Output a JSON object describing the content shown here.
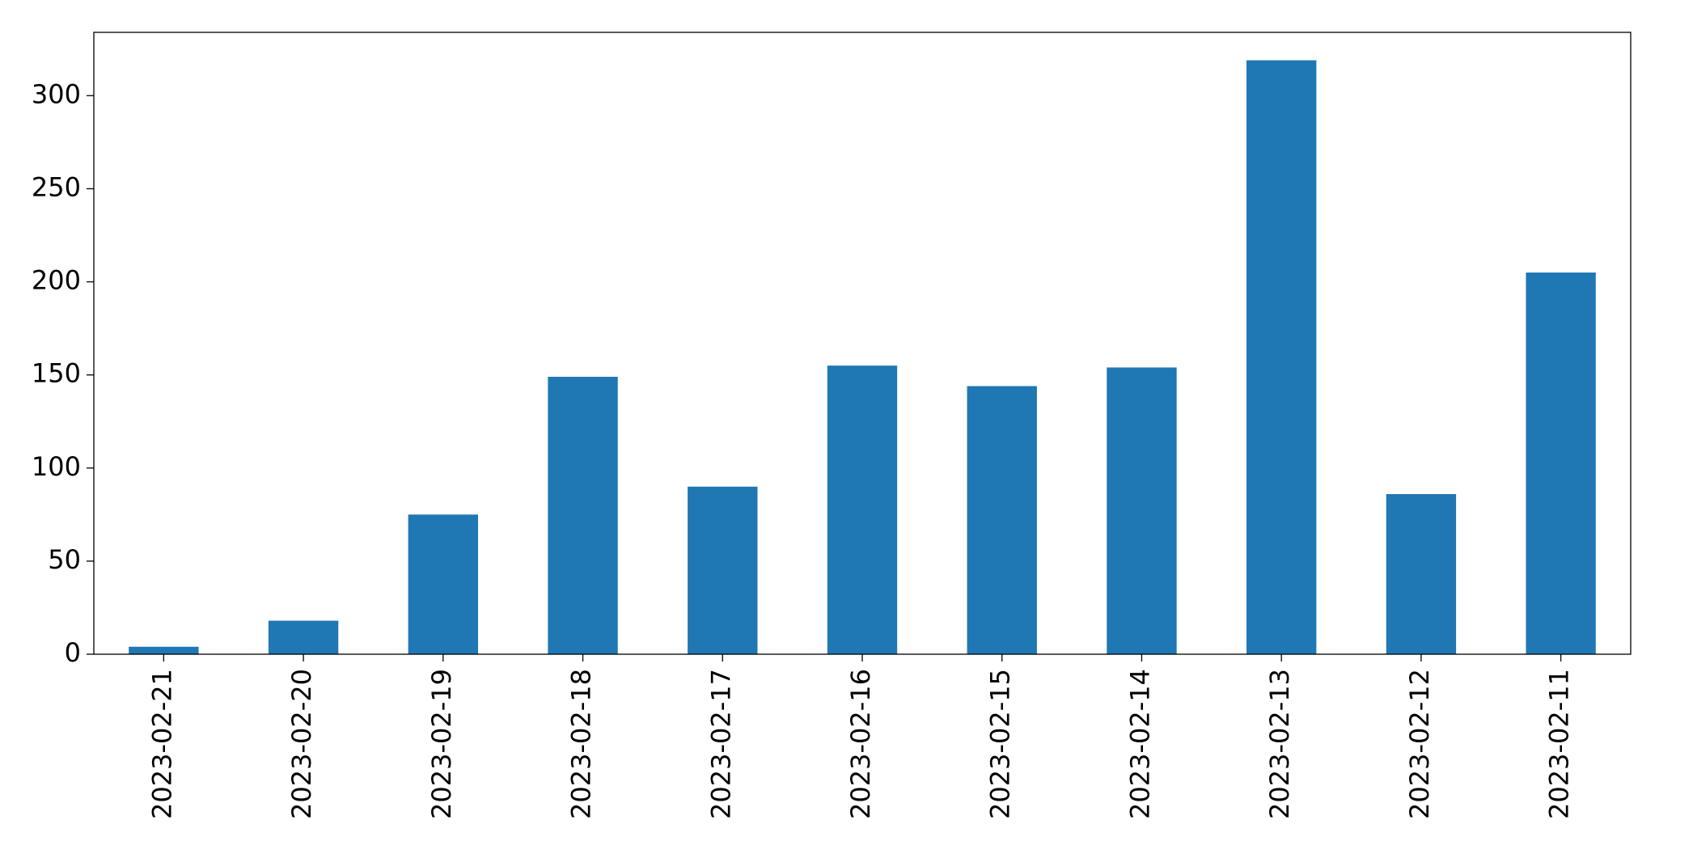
{
  "chart_data": {
    "type": "bar",
    "categories": [
      "2023-02-21",
      "2023-02-20",
      "2023-02-19",
      "2023-02-18",
      "2023-02-17",
      "2023-02-16",
      "2023-02-15",
      "2023-02-14",
      "2023-02-13",
      "2023-02-12",
      "2023-02-11"
    ],
    "values": [
      4,
      18,
      75,
      149,
      90,
      155,
      144,
      154,
      319,
      86,
      205
    ],
    "color": "#1f77b4",
    "ylim": [
      0,
      334
    ],
    "yticks": [
      0,
      50,
      100,
      150,
      200,
      250,
      300
    ],
    "grid": false
  }
}
